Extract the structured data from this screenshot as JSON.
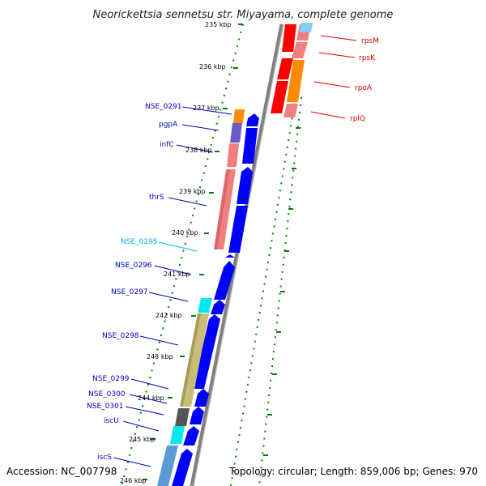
{
  "title": "Neorickettsia sennetsu str. Miyayama, complete genome",
  "footer": {
    "accession": "Accession: NC_007798",
    "topology": "Topology: circular; Length: 859,006 bp; Genes: 970"
  },
  "colors": {
    "blue": "#0000ff",
    "red": "#ff0000",
    "cyan": "#00c8ff",
    "salmon": "#f08080",
    "orange": "#ff8c00",
    "khaki": "#c8be78",
    "green": "#008000",
    "gray": "#808080"
  },
  "ticks": [
    "235 kbp",
    "236 kbp",
    "237 kbp",
    "238 kbp",
    "239 kbp",
    "240 kbp",
    "241 kbp",
    "242 kbp",
    "243 kbp",
    "244 kbp",
    "245 kbp",
    "246 kbp"
  ],
  "left_labels": [
    {
      "text": "NSE_0291",
      "color": "#0000cc"
    },
    {
      "text": "pgpA",
      "color": "#0000cc"
    },
    {
      "text": "infC",
      "color": "#0000cc"
    },
    {
      "text": "thrS",
      "color": "#0000cc"
    },
    {
      "text": "NSE_0295",
      "color": "#00b4f0"
    },
    {
      "text": "NSE_0296",
      "color": "#0000cc"
    },
    {
      "text": "NSE_0297",
      "color": "#0000cc"
    },
    {
      "text": "NSE_0298",
      "color": "#0000cc"
    },
    {
      "text": "NSE_0299",
      "color": "#0000cc"
    },
    {
      "text": "NSE_0300",
      "color": "#0000cc"
    },
    {
      "text": "NSE_0301",
      "color": "#0000cc"
    },
    {
      "text": "iscU",
      "color": "#0000cc"
    },
    {
      "text": "iscS",
      "color": "#0000cc"
    }
  ],
  "right_labels": [
    {
      "text": "rpsM",
      "color": "#e00000"
    },
    {
      "text": "rpsK",
      "color": "#e00000"
    },
    {
      "text": "rpoA",
      "color": "#e00000"
    },
    {
      "text": "rplQ",
      "color": "#e00000"
    }
  ]
}
